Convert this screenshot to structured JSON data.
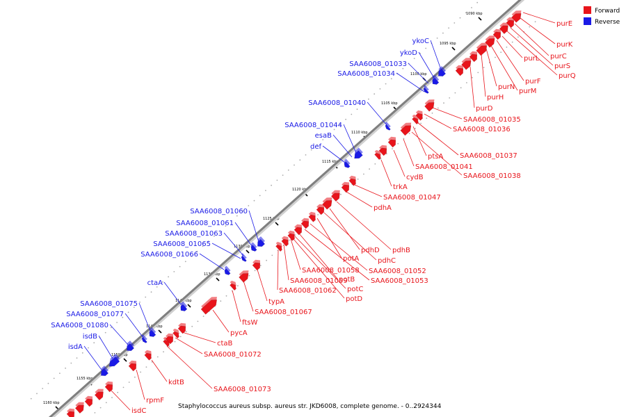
{
  "caption": "Staphylococcus aureus subsp. aureus str. JKD6008, complete genome. - 0..2924344",
  "legend": [
    {
      "label": "Forward",
      "color": "#e8141b"
    },
    {
      "label": "Reverse",
      "color": "#1a1ae6"
    }
  ],
  "colors": {
    "forward": "#e8141b",
    "reverse": "#1a1ae6",
    "backbone": "#7f7f7f"
  },
  "ticks": [
    "1090 kbp",
    "1095 kbp",
    "1100 kbp",
    "1105 kbp",
    "1110 kbp",
    "1115 kbp",
    "1120 kbp",
    "1125 kbp",
    "1130 kbp",
    "1135 kbp",
    "1140 kbp",
    "1145 kbp",
    "1150 kbp",
    "1155 kbp",
    "1160 kbp"
  ],
  "forward_genes": [
    "purE",
    "purK",
    "purC",
    "purS",
    "purQ",
    "purL",
    "purF",
    "purM",
    "purN",
    "purH",
    "purD",
    "SAA6008_01035",
    "SAA6008_01036",
    "SAA6008_01037",
    "ptsA",
    "SAA6008_01041",
    "SAA6008_01038",
    "cydB",
    "trkA",
    "SAA6008_01047",
    "pdhA",
    "pdhB",
    "pdhD",
    "pdhC",
    "potA",
    "SAA6008_01052",
    "SAA6008_01058",
    "SAA6008_01053",
    "potB",
    "SAA6008_01059",
    "potC",
    "SAA6008_01062",
    "potD",
    "typA",
    "SAA6008_01067",
    "ftsW",
    "pycA",
    "ctaB",
    "SAA6008_01072",
    "kdtB",
    "SAA6008_01073",
    "rpmF",
    "isdC"
  ],
  "reverse_genes": [
    "ykoC",
    "ykoD",
    "SAA6008_01033",
    "SAA6008_01034",
    "SAA6008_01040",
    "SAA6008_01044",
    "esaB",
    "def",
    "SAA6008_01060",
    "SAA6008_01061",
    "SAA6008_01063",
    "SAA6008_01065",
    "SAA6008_01066",
    "ctaA",
    "SAA6008_01075",
    "SAA6008_01077",
    "SAA6008_01080",
    "isdB",
    "isdA"
  ]
}
